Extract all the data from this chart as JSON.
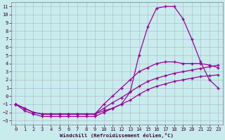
{
  "xlabel": "Windchill (Refroidissement éolien,°C)",
  "bg_color": "#c8ecec",
  "grid_color": "#b0b0cc",
  "line_color": "#990099",
  "xlim": [
    -0.5,
    23.5
  ],
  "ylim": [
    -3.5,
    11.5
  ],
  "xticks": [
    0,
    1,
    2,
    3,
    4,
    5,
    6,
    7,
    8,
    9,
    10,
    11,
    12,
    13,
    14,
    15,
    16,
    17,
    18,
    19,
    20,
    21,
    22,
    23
  ],
  "yticks": [
    -3,
    -2,
    -1,
    0,
    1,
    2,
    3,
    4,
    5,
    6,
    7,
    8,
    9,
    10,
    11
  ],
  "line1_x": [
    0,
    1,
    2,
    3,
    4,
    5,
    6,
    7,
    8,
    9,
    10,
    11,
    12,
    13,
    14,
    15,
    16,
    17,
    18,
    19,
    20,
    21,
    22,
    23
  ],
  "line1_y": [
    -1,
    -1.8,
    -2.2,
    -2.5,
    -2.5,
    -2.5,
    -2.5,
    -2.5,
    -2.5,
    -2.5,
    -2,
    -1.5,
    -1,
    0.5,
    5,
    8.5,
    10.8,
    11,
    11,
    9.5,
    7,
    4.2,
    2,
    1
  ],
  "line2_x": [
    0,
    1,
    2,
    3,
    4,
    5,
    6,
    7,
    8,
    9,
    10,
    11,
    12,
    13,
    14,
    15,
    16,
    17,
    18,
    19,
    20,
    21,
    22,
    23
  ],
  "line2_y": [
    -1,
    -1.5,
    -2,
    -2.2,
    -2.2,
    -2.2,
    -2.2,
    -2.2,
    -2.2,
    -2.2,
    -1.8,
    -1.5,
    -1,
    -0.5,
    0.2,
    0.8,
    1.2,
    1.5,
    1.8,
    2.0,
    2.2,
    2.4,
    2.5,
    2.6
  ],
  "line3_x": [
    0,
    1,
    2,
    3,
    4,
    5,
    6,
    7,
    8,
    9,
    10,
    11,
    12,
    13,
    14,
    15,
    16,
    17,
    18,
    19,
    20,
    21,
    22,
    23
  ],
  "line3_y": [
    -1,
    -1.5,
    -2,
    -2.2,
    -2.2,
    -2.2,
    -2.2,
    -2.2,
    -2.2,
    -2.2,
    -1.5,
    -0.8,
    -0.2,
    0.5,
    1.2,
    1.8,
    2.2,
    2.5,
    2.8,
    3.0,
    3.2,
    3.4,
    3.6,
    3.8
  ],
  "line4_x": [
    0,
    1,
    2,
    3,
    4,
    5,
    6,
    7,
    8,
    9,
    10,
    11,
    12,
    13,
    14,
    15,
    16,
    17,
    18,
    19,
    20,
    21,
    22,
    23
  ],
  "line4_y": [
    -1,
    -1.5,
    -2,
    -2.2,
    -2.2,
    -2.2,
    -2.2,
    -2.2,
    -2.2,
    -2.2,
    -1.0,
    0.0,
    1.0,
    2.0,
    3.0,
    3.5,
    4.0,
    4.2,
    4.2,
    4.0,
    4.0,
    4.0,
    3.8,
    3.5
  ]
}
